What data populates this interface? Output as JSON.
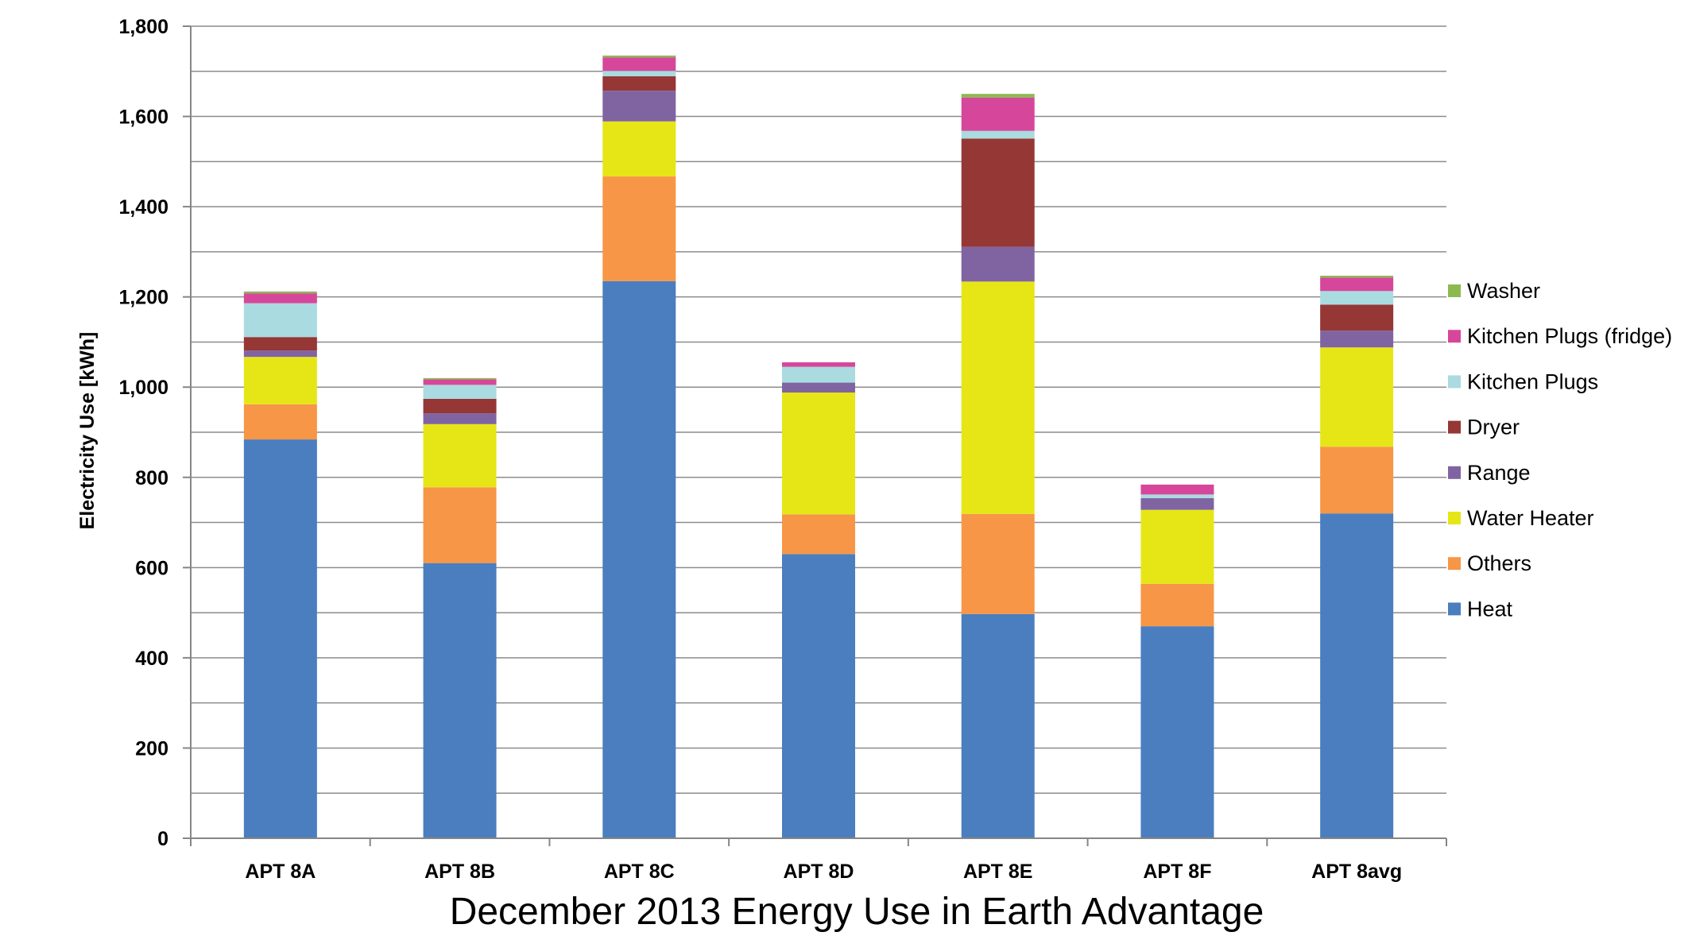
{
  "chart_data": {
    "type": "bar",
    "stacked": true,
    "title": "December 2013 Energy Use in Earth Advantage",
    "xlabel": "",
    "ylabel": "Electricity Use [kWh]",
    "ylim": [
      0,
      1800
    ],
    "yticks": [
      0,
      200,
      400,
      600,
      800,
      1000,
      1200,
      1400,
      1600,
      1800
    ],
    "ytick_labels": [
      "0",
      "200",
      "400",
      "600",
      "800",
      "1,000",
      "1,200",
      "1,400",
      "1,600",
      "1,800"
    ],
    "grid": "horizontal, every 100",
    "legend_position": "right",
    "categories": [
      "APT 8A",
      "APT 8B",
      "APT 8C",
      "APT 8D",
      "APT 8E",
      "APT 8F",
      "APT 8avg"
    ],
    "series": [
      {
        "name": "Heat",
        "color": "#4a7ebf",
        "values": [
          884,
          610,
          1235,
          630,
          497,
          470,
          720
        ]
      },
      {
        "name": "Others",
        "color": "#f79646",
        "values": [
          78,
          168,
          232,
          88,
          222,
          94,
          148
        ]
      },
      {
        "name": "Water Heater",
        "color": "#e6e617",
        "values": [
          105,
          140,
          122,
          270,
          515,
          164,
          220
        ]
      },
      {
        "name": "Range",
        "color": "#8064a2",
        "values": [
          14,
          24,
          68,
          22,
          77,
          26,
          37
        ]
      },
      {
        "name": "Dryer",
        "color": "#953735",
        "values": [
          30,
          32,
          32,
          0,
          240,
          0,
          58
        ]
      },
      {
        "name": "Kitchen Plugs",
        "color": "#a9dbe0",
        "values": [
          75,
          31,
          12,
          35,
          17,
          8,
          30
        ]
      },
      {
        "name": "Kitchen Plugs (fridge)",
        "color": "#d6479b",
        "values": [
          22,
          12,
          30,
          10,
          74,
          22,
          30
        ]
      },
      {
        "name": "Washer",
        "color": "#8cba4f",
        "values": [
          4,
          3,
          4,
          0,
          8,
          0,
          4
        ]
      }
    ]
  }
}
